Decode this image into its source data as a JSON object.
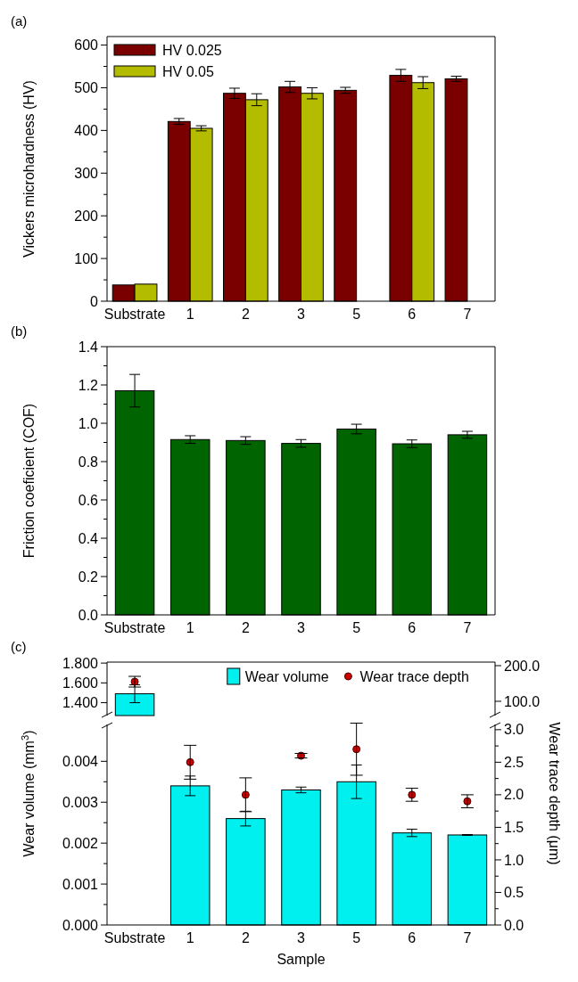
{
  "chart_data": [
    {
      "type": "bar",
      "annotations": [
        "(a)"
      ],
      "ylabel": "Vickers microhardness (HV)",
      "categories": [
        "Substrate",
        "1",
        "2",
        "3",
        "5",
        "6",
        "7"
      ],
      "ylim": [
        0,
        620
      ],
      "yticks": [
        0,
        {
          "value": 50,
          "label": null
        },
        100,
        {
          "value": 150,
          "label": null
        },
        200,
        {
          "value": 250,
          "label": null
        },
        300,
        {
          "value": 350,
          "label": null
        },
        400,
        {
          "value": 450,
          "label": null
        },
        500,
        {
          "value": 550,
          "label": null
        },
        600
      ],
      "legend": "top left",
      "series": [
        {
          "name": "HV 0.025",
          "color": "#7a0000",
          "values": [
            38,
            421,
            487,
            502,
            494,
            529,
            521
          ],
          "errors": [
            null,
            7,
            12,
            13,
            7,
            14,
            6
          ]
        },
        {
          "name": "HV 0.05",
          "color": "#b4bc00",
          "values": [
            40,
            405,
            472,
            487,
            null,
            512,
            null
          ],
          "errors": [
            null,
            6,
            14,
            13,
            null,
            14,
            null
          ]
        }
      ]
    },
    {
      "type": "bar",
      "annotations": [
        "(b)"
      ],
      "ylabel": "Friction coeficient (COF)",
      "categories": [
        "Substrate",
        "1",
        "2",
        "3",
        "5",
        "6",
        "7"
      ],
      "ylim": [
        0,
        1.4
      ],
      "yticks": [
        {
          "value": 0,
          "label": "0.0"
        },
        {
          "value": 0.1,
          "label": null
        },
        {
          "value": 0.2,
          "label": "0.2"
        },
        {
          "value": 0.3,
          "label": null
        },
        {
          "value": 0.4,
          "label": "0.4"
        },
        {
          "value": 0.5,
          "label": null
        },
        {
          "value": 0.6,
          "label": "0.6"
        },
        {
          "value": 0.7,
          "label": null
        },
        {
          "value": 0.8,
          "label": "0.8"
        },
        {
          "value": 0.9,
          "label": null
        },
        {
          "value": 1.0,
          "label": "1.0"
        },
        {
          "value": 1.1,
          "label": null
        },
        {
          "value": 1.2,
          "label": "1.2"
        },
        {
          "value": 1.3,
          "label": null
        },
        {
          "value": 1.4,
          "label": "1.4"
        }
      ],
      "color": "#006400",
      "values": [
        1.17,
        0.915,
        0.91,
        0.895,
        0.97,
        0.893,
        0.94
      ],
      "errors": [
        0.085,
        0.02,
        0.02,
        0.02,
        0.025,
        0.02,
        0.018
      ]
    },
    {
      "type": "bar",
      "annotations": [
        "(c)"
      ],
      "categories": [
        null,
        null,
        null,
        null,
        null,
        null,
        null
      ],
      "tick_labels": "y",
      "ylim": [
        1.27,
        1.81
      ],
      "yticks": [
        {
          "value": 1.4,
          "label": "1.400"
        },
        {
          "value": 1.6,
          "label": "1.600"
        },
        {
          "value": 1.8,
          "label": "1.800"
        }
      ],
      "y2lim": [
        60,
        210
      ],
      "y2ticks": [
        {
          "value": 100,
          "label": "100.0"
        },
        {
          "value": 200,
          "label": "200.0"
        }
      ],
      "legend": "top right",
      "marker": "circle",
      "series": [
        {
          "name": "Wear volume",
          "color": "#00f0f0",
          "values": [
            1.49,
            null,
            null,
            null,
            null,
            null,
            null
          ],
          "errors": [
            0.09,
            null,
            null,
            null,
            null,
            null,
            null
          ]
        },
        {
          "name": "Wear trace depth",
          "type": "scatter",
          "axis": "y2",
          "color": "#cc0000",
          "values": [
            155,
            null,
            null,
            null,
            null,
            null,
            null
          ],
          "errors": [
            15,
            null,
            null,
            null,
            null,
            null,
            null
          ]
        }
      ]
    },
    {
      "type": "bar",
      "ylabel": "Wear volume (mm$^{3}$)",
      "y2label": "Wear trace depth (μm)",
      "xlabel": "Sample",
      "categories": [
        "Substrate",
        "1",
        "2",
        "3",
        "5",
        "6",
        "7"
      ],
      "ylim": [
        0,
        0.0049
      ],
      "yticks": [
        {
          "value": 0,
          "label": "0.000"
        },
        {
          "value": 0.0005,
          "label": null
        },
        {
          "value": 0.001,
          "label": "0.001"
        },
        {
          "value": 0.0015,
          "label": null
        },
        {
          "value": 0.002,
          "label": "0.002"
        },
        {
          "value": 0.0025,
          "label": null
        },
        {
          "value": 0.003,
          "label": "0.003"
        },
        {
          "value": 0.0035,
          "label": null
        },
        {
          "value": 0.004,
          "label": "0.004"
        }
      ],
      "y2lim": [
        0,
        3.08
      ],
      "y2ticks": [
        {
          "value": 0,
          "label": "0.0"
        },
        {
          "value": 0.25,
          "label": null
        },
        {
          "value": 0.5,
          "label": "0.5"
        },
        {
          "value": 0.75,
          "label": null
        },
        {
          "value": 1,
          "label": "1.0"
        },
        {
          "value": 1.25,
          "label": null
        },
        {
          "value": 1.5,
          "label": "1.5"
        },
        {
          "value": 1.75,
          "label": null
        },
        {
          "value": 2,
          "label": "2.0"
        },
        {
          "value": 2.25,
          "label": null
        },
        {
          "value": 2.5,
          "label": "2.5"
        },
        {
          "value": 2.75,
          "label": null
        },
        {
          "value": 3,
          "label": "3.0"
        }
      ],
      "marker": "circle",
      "series": [
        {
          "color": "#00f0f0",
          "values": [
            null,
            0.0034,
            0.0026,
            0.0033,
            0.0035,
            0.00225,
            0.0022
          ],
          "errors": [
            null,
            0.00024,
            0.00018,
            7e-05,
            0.00041,
            9e-05,
            1e-05
          ]
        },
        {
          "type": "scatter",
          "axis": "y2",
          "color": "#cc0000",
          "values": [
            null,
            2.5,
            2.0,
            2.6,
            2.7,
            2.0,
            1.9
          ],
          "errors": [
            null,
            0.26,
            0.26,
            0.035,
            0.4,
            0.1,
            0.1
          ]
        }
      ]
    }
  ]
}
